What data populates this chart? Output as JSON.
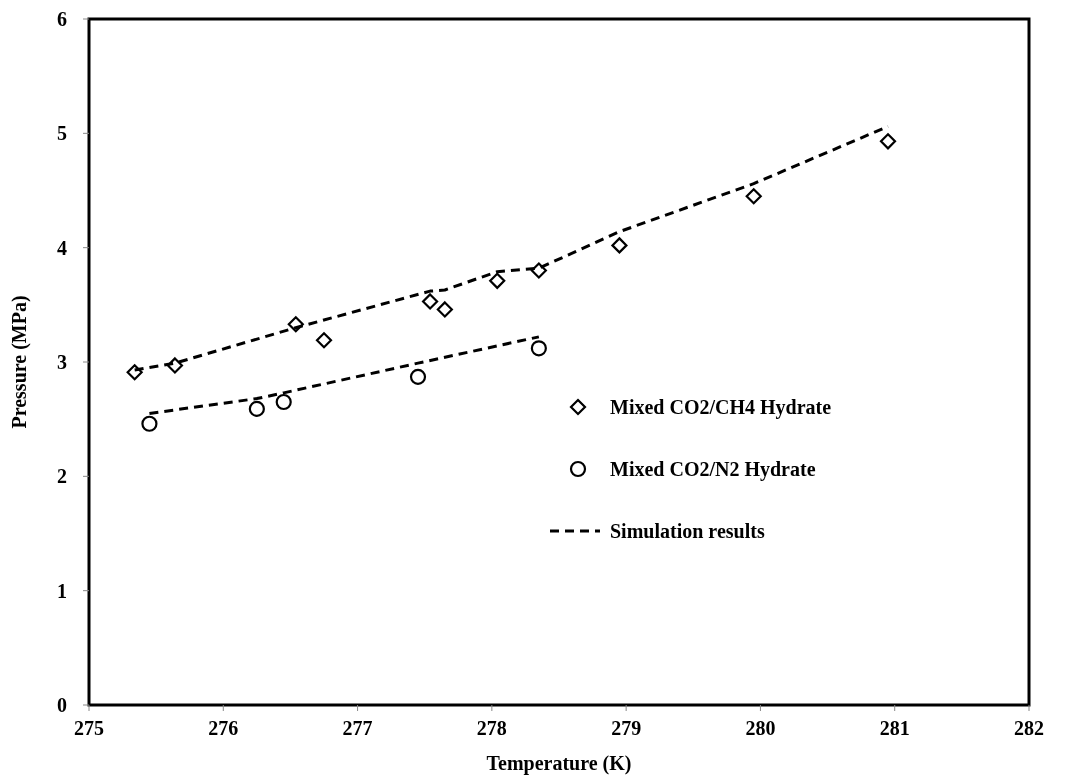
{
  "chart_data": {
    "type": "scatter",
    "xlabel": "Temperature  (K)",
    "ylabel": "Pressure  (MPa)",
    "xlim": [
      275,
      282
    ],
    "xticks": [
      275,
      276,
      277,
      278,
      279,
      280,
      281,
      282
    ],
    "ylim": [
      0,
      6
    ],
    "yticks": [
      0,
      1,
      2,
      3,
      4,
      5,
      6
    ],
    "grid": false,
    "legend": "right",
    "series": [
      {
        "name": "Mixed CO2/CH4 Hydrate",
        "marker": "diamond",
        "color": "#000000",
        "x": [
          275.34,
          275.64,
          276.54,
          276.75,
          277.54,
          277.65,
          278.04,
          278.35,
          278.95,
          279.95,
          280.95
        ],
        "values": [
          2.91,
          2.97,
          3.33,
          3.19,
          3.53,
          3.46,
          3.71,
          3.8,
          4.02,
          4.45,
          4.93
        ]
      },
      {
        "name": "Mixed CO2/N2 Hydrate",
        "marker": "circle",
        "color": "#000000",
        "x": [
          275.45,
          276.25,
          276.45,
          277.45,
          278.35
        ],
        "values": [
          2.46,
          2.59,
          2.65,
          2.87,
          3.12
        ]
      },
      {
        "name": "Simulation results",
        "type": "line",
        "line_style": "dashed",
        "marker": "none",
        "color": "#000000",
        "x": [
          275.34,
          275.64,
          276.54,
          277.54,
          277.65,
          278.04,
          278.35,
          278.95,
          279.95,
          280.95
        ],
        "values": [
          2.93,
          2.99,
          3.3,
          3.62,
          3.63,
          3.79,
          3.82,
          4.14,
          4.56,
          5.06
        ]
      },
      {
        "type": "line",
        "line_style": "dashed",
        "marker": "none",
        "color": "#000000",
        "x": [
          275.45,
          276.25,
          276.45,
          277.45,
          278.35
        ],
        "values": [
          2.55,
          2.68,
          2.73,
          2.99,
          3.22
        ]
      }
    ]
  }
}
